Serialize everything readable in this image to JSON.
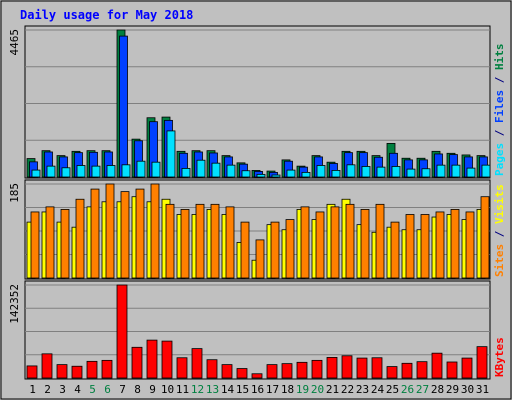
{
  "chart_data": {
    "type": "bar",
    "title": "Daily usage for May 2018",
    "days": [
      "1",
      "2",
      "3",
      "4",
      "5",
      "6",
      "7",
      "8",
      "9",
      "10",
      "11",
      "12",
      "13",
      "14",
      "15",
      "16",
      "17",
      "18",
      "19",
      "20",
      "21",
      "22",
      "23",
      "24",
      "25",
      "26",
      "27",
      "28",
      "29",
      "30",
      "31"
    ],
    "weekend_days": [
      "5",
      "6",
      "12",
      "13",
      "19",
      "20",
      "26",
      "27"
    ],
    "panels": [
      {
        "name": "hits-files-pages",
        "max_label": "4465",
        "ymax": 4465,
        "label_parts": [
          {
            "text": "Pages",
            "color": "#00e0ff"
          },
          {
            "text": " / ",
            "color": "#000080"
          },
          {
            "text": "Files",
            "color": "#0040ff"
          },
          {
            "text": " / ",
            "color": "#000080"
          },
          {
            "text": "Hits",
            "color": "#008040"
          }
        ],
        "series": [
          {
            "name": "Hits",
            "color": "#008040",
            "values": [
              560,
              800,
              650,
              780,
              800,
              800,
              4465,
              1150,
              1800,
              1820,
              780,
              800,
              800,
              650,
              430,
              200,
              180,
              520,
              330,
              650,
              450,
              780,
              780,
              650,
              1020,
              570,
              570,
              780,
              720,
              670,
              650
            ]
          },
          {
            "name": "Files",
            "color": "#0040ff",
            "values": [
              460,
              760,
              610,
              740,
              750,
              760,
              4280,
              1100,
              1680,
              1720,
              720,
              760,
              730,
              610,
              390,
              170,
              140,
              480,
              300,
              610,
              410,
              740,
              740,
              600,
              720,
              520,
              520,
              700,
              680,
              610,
              610
            ]
          },
          {
            "name": "Pages",
            "color": "#00e0ff",
            "values": [
              210,
              330,
              280,
              350,
              330,
              350,
              370,
              480,
              450,
              1400,
              260,
              510,
              420,
              360,
              190,
              80,
              60,
              210,
              140,
              350,
              200,
              370,
              320,
              300,
              320,
              240,
              250,
              360,
              360,
              270,
              360
            ]
          }
        ]
      },
      {
        "name": "visits-sites",
        "max_label": "185",
        "ymax": 185,
        "label_parts": [
          {
            "text": "Sites",
            "color": "#ff8000"
          },
          {
            "text": " / ",
            "color": "#000080"
          },
          {
            "text": "Visits",
            "color": "#ffff00"
          }
        ],
        "series": [
          {
            "name": "Visits",
            "color": "#ffff00",
            "values": [
              110,
              130,
              110,
              100,
              140,
              150,
              150,
              160,
              150,
              155,
              125,
              125,
              135,
              125,
              70,
              35,
              105,
              95,
              135,
              115,
              145,
              155,
              105,
              90,
              100,
              95,
              95,
              120,
              125,
              115,
              135
            ]
          },
          {
            "name": "Sites",
            "color": "#ff8000",
            "values": [
              130,
              140,
              135,
              155,
              175,
              185,
              170,
              175,
              185,
              145,
              135,
              145,
              145,
              140,
              110,
              75,
              110,
              115,
              140,
              130,
              140,
              145,
              135,
              145,
              110,
              125,
              125,
              130,
              135,
              130,
              160
            ]
          }
        ]
      },
      {
        "name": "kbytes",
        "max_label": "142352",
        "ymax": 142352,
        "label_parts": [
          {
            "text": "KBytes",
            "color": "#ff0000"
          }
        ],
        "series": [
          {
            "name": "KBytes",
            "color": "#ff0000",
            "values": [
              18500,
              37000,
              20500,
              18000,
              25500,
              27000,
              142352,
              47000,
              58000,
              56500,
              31000,
              45000,
              28000,
              20500,
              14500,
              6500,
              20500,
              22000,
              24000,
              27000,
              31500,
              34000,
              30500,
              31000,
              17500,
              22500,
              25000,
              38000,
              24500,
              30500,
              48000
            ]
          }
        ]
      }
    ]
  }
}
